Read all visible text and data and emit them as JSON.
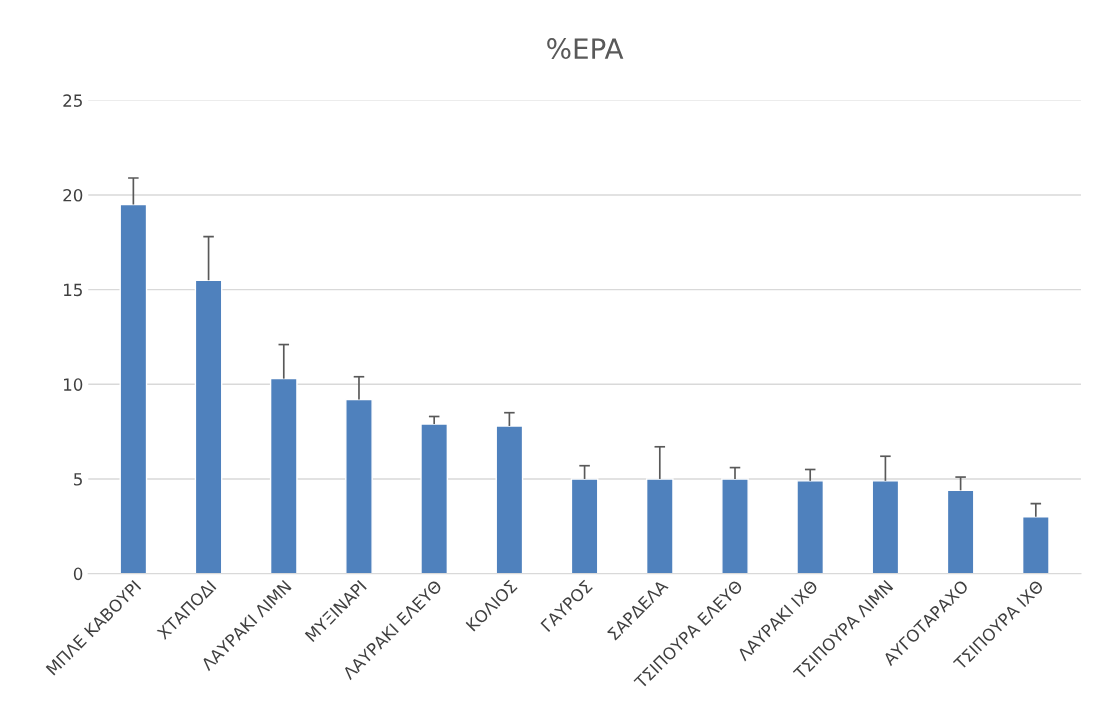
{
  "chart_data": {
    "type": "bar",
    "title": "%EPA",
    "categories": [
      "ΜΠΛΕ ΚΑΒΟΥΡΙ",
      "ΧΤΑΠΟΔΙ",
      "ΛΑΥΡΑΚΙ ΛΙΜΝ",
      "ΜΥΞΙΝΑΡΙ",
      "ΛΑΥΡΑΚΙ ΕΛΕΥΘ",
      "ΚΟΛΙΟΣ",
      "ΓΑΥΡΟΣ",
      "ΣΑΡΔΕΛΑ",
      "ΤΣΙΠΟΥΡΑ ΕΛΕΥΘ",
      "ΛΑΥΡΑΚΙ ΙΧΘ",
      "ΤΣΙΠΟΥΡΑ ΛΙΜΝ",
      "ΑΥΓΟΤΑΡΑΧΟ",
      "ΤΣΙΠΟΥΡΑ ΙΧΘ"
    ],
    "values": [
      19.5,
      15.5,
      10.3,
      9.2,
      7.9,
      7.8,
      5.0,
      5.0,
      5.0,
      4.9,
      4.9,
      4.4,
      3.0
    ],
    "errors": [
      [
        19.5,
        20.9
      ],
      [
        15.5,
        17.8
      ],
      [
        10.3,
        12.1
      ],
      [
        9.2,
        10.4
      ],
      [
        7.9,
        8.3
      ],
      [
        7.8,
        8.5
      ],
      [
        5.0,
        5.7
      ],
      [
        5.0,
        6.7
      ],
      [
        5.0,
        5.6
      ],
      [
        4.9,
        5.5
      ],
      [
        4.9,
        6.2
      ],
      [
        4.4,
        5.1
      ],
      [
        3.0,
        3.7
      ]
    ],
    "color": "#4f81bd",
    "ylim": [
      0,
      25
    ],
    "yticks": [
      0,
      5,
      10,
      15,
      20,
      25
    ],
    "grid": "y"
  }
}
